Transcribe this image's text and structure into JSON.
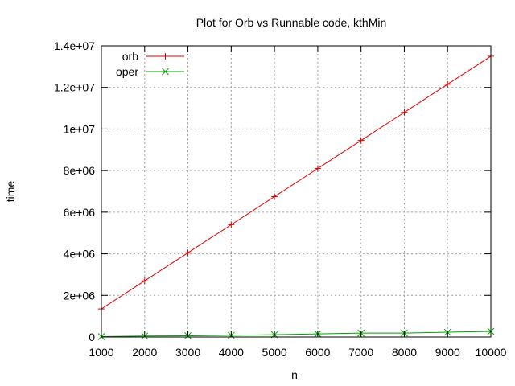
{
  "chart_data": {
    "type": "line",
    "title": "Plot for Orb vs Runnable code, kthMin",
    "xlabel": "n",
    "ylabel": "time",
    "xlim": [
      1000,
      10000
    ],
    "ylim": [
      0,
      14000000
    ],
    "x_ticks": [
      1000,
      2000,
      3000,
      4000,
      5000,
      6000,
      7000,
      8000,
      9000,
      10000
    ],
    "x_tick_labels": [
      "1000",
      "2000",
      "3000",
      "4000",
      "5000",
      "6000",
      "7000",
      "8000",
      "9000",
      "10000"
    ],
    "y_ticks": [
      0,
      2000000,
      4000000,
      6000000,
      8000000,
      10000000,
      12000000,
      14000000
    ],
    "y_tick_labels": [
      "0",
      "2e+06",
      "4e+06",
      "6e+06",
      "8e+06",
      "1e+07",
      "1.2e+07",
      "1.4e+07"
    ],
    "grid": true,
    "legend_position": "top-left",
    "x": [
      1000,
      2000,
      3000,
      4000,
      5000,
      6000,
      7000,
      8000,
      9000,
      10000
    ],
    "series": [
      {
        "name": "orb",
        "color": "#e00000",
        "marker": "plus",
        "values": [
          1350000,
          2700000,
          4050000,
          5400000,
          6750000,
          8100000,
          9450000,
          10800000,
          12150000,
          13500000
        ]
      },
      {
        "name": "oper",
        "color": "#00a000",
        "marker": "cross",
        "values": [
          20000,
          50000,
          60000,
          80000,
          110000,
          150000,
          190000,
          190000,
          230000,
          270000
        ]
      }
    ]
  }
}
